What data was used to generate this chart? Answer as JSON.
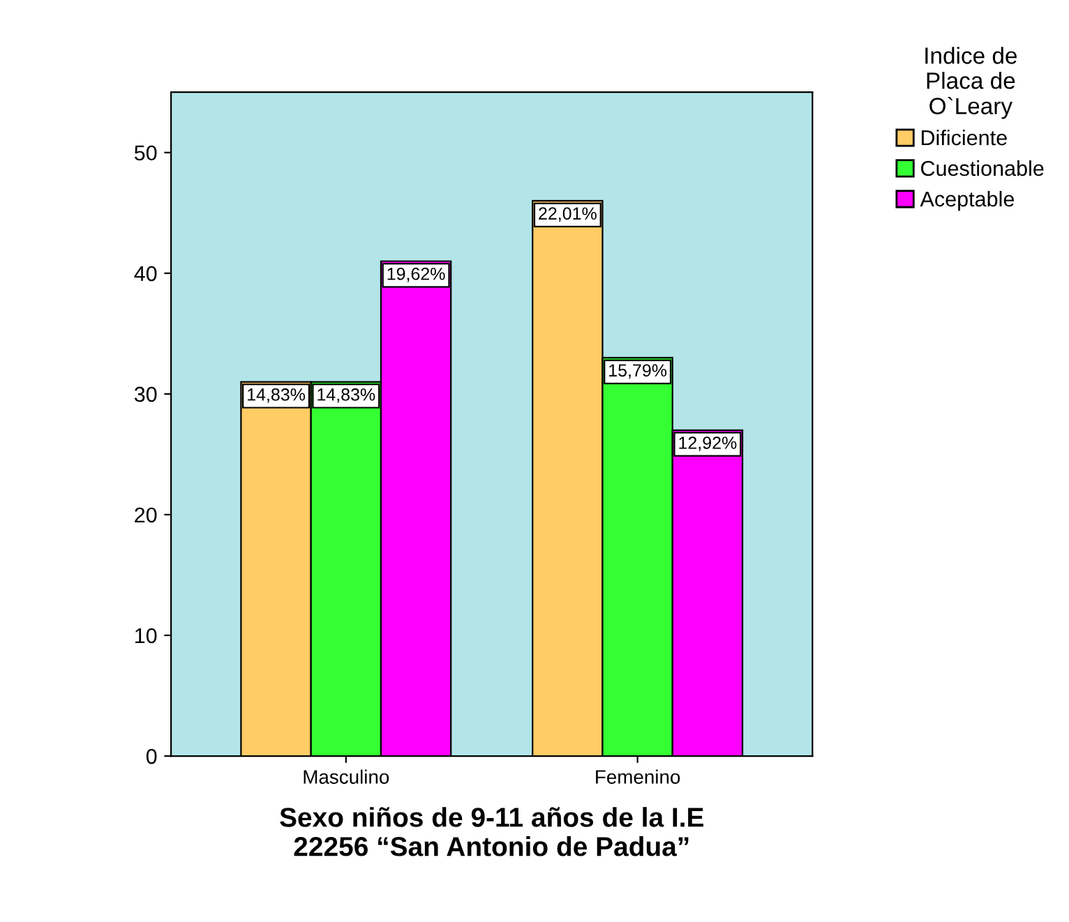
{
  "chart_data": {
    "type": "bar",
    "xlabel": "Sexo niños de 9-11 años de la I.E\n22256 “San Antonio de Padua”",
    "legend_title": "Indice de\nPlaca de\nO`Leary",
    "categories": [
      "Masculino",
      "Femenino"
    ],
    "series": [
      {
        "name": "Dificiente",
        "color": "#ffcc66",
        "values": [
          31,
          46
        ]
      },
      {
        "name": "Cuestionable",
        "color": "#33ff33",
        "values": [
          31,
          33
        ]
      },
      {
        "name": "Aceptable",
        "color": "#ff00ff",
        "values": [
          41,
          27
        ]
      }
    ],
    "annotations": [
      "14,83%",
      "14,83%",
      "19,62%",
      "22,01%",
      "15,79%",
      "12,92%"
    ],
    "ylim": [
      0,
      55
    ],
    "yticks": [
      0,
      10,
      20,
      30,
      40,
      50
    ],
    "grid": false,
    "legend": "top right"
  }
}
